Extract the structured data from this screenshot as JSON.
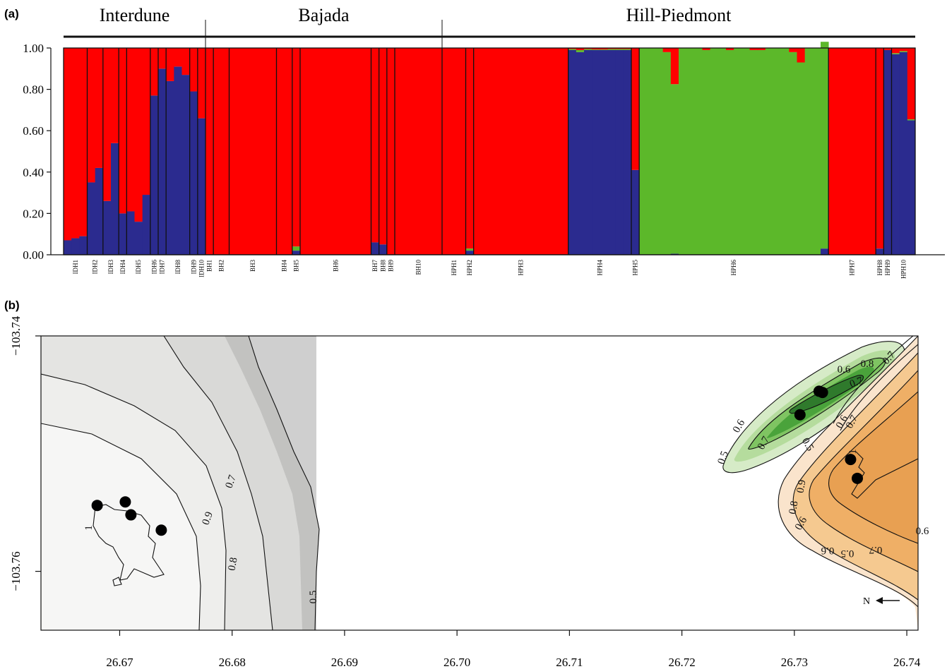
{
  "panel_a": {
    "label": "(a)",
    "chart_data": {
      "type": "bar",
      "stacked": true,
      "title": "",
      "xlabel": "",
      "ylabel": "",
      "ylim": [
        0,
        1
      ],
      "yticks": [
        "0.00",
        "0.20",
        "0.40",
        "0.60",
        "0.80",
        "1.00"
      ],
      "colors": {
        "red": "#ff0000",
        "blue": "#2b2b8f",
        "green": "#5cb82a"
      },
      "regions": [
        {
          "name": "Interdune",
          "from": "IDH1",
          "to": "IDH10"
        },
        {
          "name": "Bajada",
          "from": "BH1",
          "to": "BH10"
        },
        {
          "name": "Hill-Piedmont",
          "from": "HPH1",
          "to": "HPH10"
        }
      ],
      "populations": [
        {
          "label": "IDH1",
          "blue": [
            0.07,
            0.08,
            0.09
          ]
        },
        {
          "label": "IDH2",
          "blue": [
            0.35,
            0.42
          ]
        },
        {
          "label": "IDH3",
          "blue": [
            0.26,
            0.54
          ]
        },
        {
          "label": "IDH4",
          "blue": [
            0.2
          ]
        },
        {
          "label": "IDH5",
          "blue": [
            0.21,
            0.16,
            0.29
          ]
        },
        {
          "label": "IDH6",
          "blue": [
            0.77
          ]
        },
        {
          "label": "IDH7",
          "blue": [
            0.9
          ]
        },
        {
          "label": "IDH8",
          "blue": [
            0.84,
            0.91,
            0.87
          ]
        },
        {
          "label": "IDH9",
          "blue": [
            0.79
          ]
        },
        {
          "label": "IDH10",
          "blue": [
            0.66
          ]
        },
        {
          "label": "BH1",
          "n": 1
        },
        {
          "label": "BH2",
          "n": 2
        },
        {
          "label": "BH3",
          "n": 6
        },
        {
          "label": "BH4",
          "n": 2
        },
        {
          "label": "BH5",
          "blue": [
            0.02
          ],
          "green": [
            0.02
          ]
        },
        {
          "label": "BH6",
          "n": 9
        },
        {
          "label": "BH7",
          "blue": [
            0.06
          ]
        },
        {
          "label": "BH8",
          "blue": [
            0.05
          ]
        },
        {
          "label": "BH9",
          "n": 1
        },
        {
          "label": "BH10",
          "n": 6
        },
        {
          "label": "HPH1",
          "n": 3
        },
        {
          "label": "HPH2",
          "blue": [
            0.02
          ],
          "green": [
            0.01
          ]
        },
        {
          "label": "HPH3",
          "n": 12
        },
        {
          "label": "HPH4",
          "blue": [
            0.99,
            0.98,
            0.99,
            0.99,
            0.99,
            0.99,
            0.99,
            0.99
          ],
          "green": [
            0.005,
            0.01,
            0.005,
            0.003,
            0.003,
            0.005,
            0.005,
            0.005
          ]
        },
        {
          "label": "HPH5",
          "blue": [
            0.41
          ]
        },
        {
          "label": "HPH6",
          "green": [
            1,
            1,
            1,
            0.98,
            0.82,
            1,
            1,
            1,
            0.99,
            1,
            1,
            0.99,
            1,
            1,
            0.99,
            0.99,
            1,
            1,
            1,
            0.98,
            0.93,
            1,
            1,
            1
          ],
          "blue": [
            0,
            0,
            0,
            0,
            0.005,
            0,
            0,
            0,
            0,
            0,
            0,
            0,
            0,
            0,
            0,
            0,
            0,
            0,
            0,
            0,
            0,
            0,
            0,
            0.03
          ]
        },
        {
          "label": "HPH7",
          "n": 6
        },
        {
          "label": "HPH8",
          "blue": [
            0.03
          ],
          "n": 2
        },
        {
          "label": "HPH9",
          "blue": [
            0.99
          ]
        },
        {
          "label": "HPH10",
          "blue": [
            0.97,
            0.98,
            0.65
          ],
          "green": [
            0.005,
            0.005,
            0.005
          ]
        }
      ]
    }
  },
  "panel_b": {
    "label": "(b)",
    "north_label": "N",
    "chart_data": {
      "type": "contour",
      "title": "",
      "xlabel": "",
      "ylabel": "",
      "xlim": [
        26.663,
        26.741
      ],
      "ylim": [
        -103.765,
        -103.74
      ],
      "xticks": [
        "26.67",
        "26.68",
        "26.69",
        "26.70",
        "26.71",
        "26.72",
        "26.73",
        "26.74"
      ],
      "yticks": [
        "−103.74",
        "−103.76"
      ],
      "clusters": [
        {
          "color": "gray",
          "points": [
            [
              26.668,
              -103.7544
            ],
            [
              26.6705,
              -103.7541
            ],
            [
              26.671,
              -103.7552
            ],
            [
              26.6737,
              -103.7565
            ]
          ],
          "contour_labels": [
            "1",
            "0.9",
            "0.8",
            "0.7",
            "0.5"
          ]
        },
        {
          "color": "green",
          "points": [
            [
              26.7322,
              -103.7447
            ],
            [
              26.7325,
              -103.7448
            ],
            [
              26.7305,
              -103.7467
            ]
          ],
          "contour_labels": [
            "0.8",
            "0.6",
            "0.7",
            "0.6",
            "0.7",
            "0.5",
            "0.6",
            "0.5"
          ]
        },
        {
          "color": "orange",
          "points": [
            [
              26.735,
              -103.7505
            ],
            [
              26.7356,
              -103.7521
            ]
          ],
          "contour_labels": [
            "0.7",
            "0.6",
            "0.5",
            "1",
            "0.9",
            "0.8",
            "0.6",
            "0.7",
            "0.7",
            "0.6"
          ]
        }
      ]
    }
  }
}
